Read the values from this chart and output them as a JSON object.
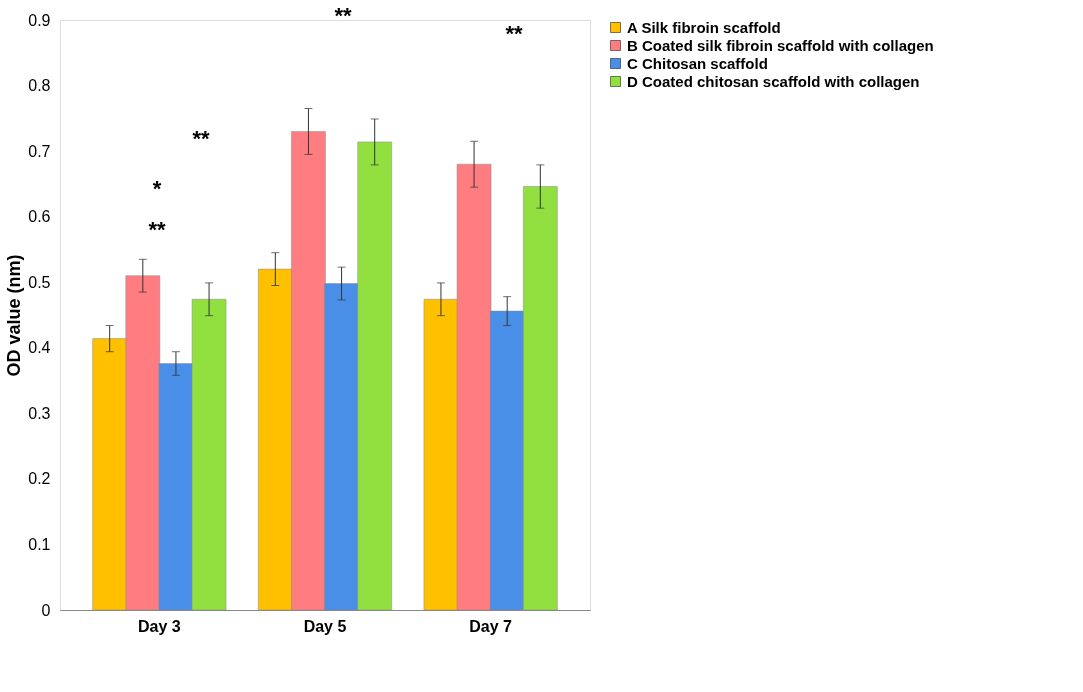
{
  "chart_data": {
    "type": "bar",
    "ylabel": "OD value (nm)",
    "categories": [
      "Day 3",
      "Day 5",
      "Day 7"
    ],
    "series": [
      {
        "name": "A Silk fibroin scaffold",
        "color": "#ffc000",
        "values": [
          0.414,
          0.52,
          0.474
        ],
        "errors": [
          0.02,
          0.025,
          0.025
        ]
      },
      {
        "name": "B Coated silk fibroin scaffold with collagen",
        "color": "#ff7c80",
        "values": [
          0.51,
          0.73,
          0.68
        ],
        "errors": [
          0.025,
          0.035,
          0.035
        ]
      },
      {
        "name": "C Chitosan scaffold",
        "color": "#4a8fe7",
        "values": [
          0.376,
          0.498,
          0.456
        ],
        "errors": [
          0.018,
          0.025,
          0.022
        ]
      },
      {
        "name": "D Coated chitosan scaffold with collagen",
        "color": "#92e040",
        "values": [
          0.474,
          0.714,
          0.646
        ],
        "errors": [
          0.025,
          0.035,
          0.033
        ]
      }
    ],
    "ylim": [
      0,
      0.9
    ],
    "yticks": [
      0,
      0.1,
      0.2,
      0.3,
      0.4,
      0.5,
      0.6,
      0.7,
      0.8,
      0.9
    ],
    "grid": false,
    "legend": "right",
    "annotations": [
      "**",
      "*",
      "**",
      "**",
      "**"
    ]
  }
}
